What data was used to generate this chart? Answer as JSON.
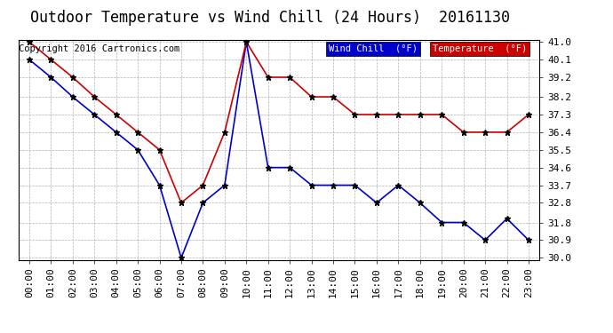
{
  "title": "Outdoor Temperature vs Wind Chill (24 Hours)  20161130",
  "copyright": "Copyright 2016 Cartronics.com",
  "x_labels": [
    "00:00",
    "01:00",
    "02:00",
    "03:00",
    "04:00",
    "05:00",
    "06:00",
    "07:00",
    "08:00",
    "09:00",
    "10:00",
    "11:00",
    "12:00",
    "13:00",
    "14:00",
    "15:00",
    "16:00",
    "17:00",
    "18:00",
    "19:00",
    "20:00",
    "21:00",
    "22:00",
    "23:00"
  ],
  "wind_chill": [
    40.1,
    39.2,
    38.2,
    37.3,
    36.4,
    35.5,
    33.7,
    30.0,
    32.8,
    33.7,
    41.0,
    34.6,
    34.6,
    33.7,
    33.7,
    33.7,
    32.8,
    33.7,
    32.8,
    31.8,
    31.8,
    30.9,
    32.0,
    30.9
  ],
  "temperature": [
    41.0,
    40.1,
    39.2,
    38.2,
    37.3,
    36.4,
    35.5,
    32.8,
    33.7,
    36.4,
    41.0,
    39.2,
    39.2,
    38.2,
    38.2,
    37.3,
    37.3,
    37.3,
    37.3,
    37.3,
    36.4,
    36.4,
    36.4,
    37.3
  ],
  "wind_chill_color": "#0000cc",
  "temperature_color": "#cc0000",
  "background_color": "#ffffff",
  "grid_color": "#aaaaaa",
  "ylim_min": 30.0,
  "ylim_max": 41.0,
  "yticks": [
    30.0,
    30.9,
    31.8,
    32.8,
    33.7,
    34.6,
    35.5,
    36.4,
    37.3,
    38.2,
    39.2,
    40.1,
    41.0
  ],
  "legend_wind_chill_bg": "#0000cc",
  "legend_temp_bg": "#cc0000",
  "legend_text_color": "#ffffff",
  "title_fontsize": 12,
  "copyright_fontsize": 7.5,
  "tick_fontsize": 8
}
